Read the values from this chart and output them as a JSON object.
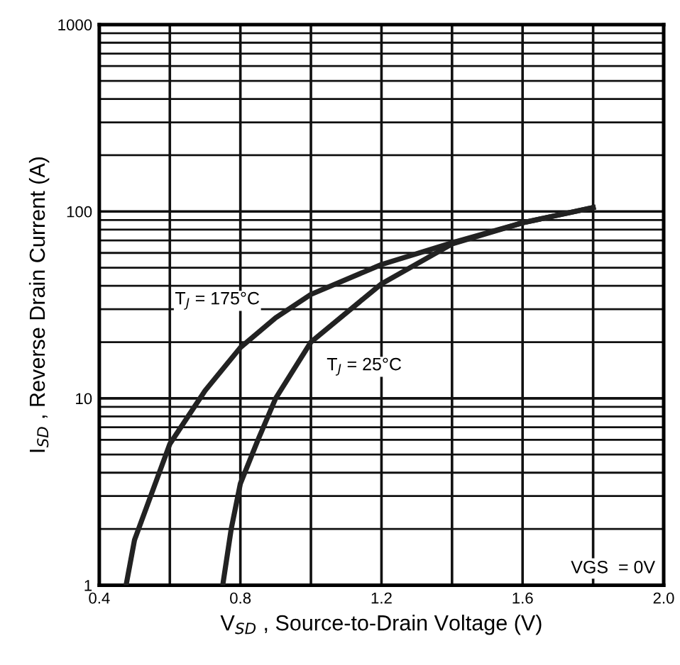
{
  "chart_data": {
    "type": "line",
    "log": "y",
    "xlabel": "V$_{SD}$ , Source-to-Drain Voltage (V)",
    "ylabel": "I$_{SD}$ , Reverse Drain Current (A)",
    "xlim": [
      0.4,
      2.0
    ],
    "ylim": [
      1,
      1000
    ],
    "xticks": [
      0.4,
      {
        "value": 0.6,
        "label": null
      },
      0.8,
      {
        "value": 1.0,
        "label": null
      },
      1.2,
      {
        "value": 1.4,
        "label": null
      },
      1.6,
      {
        "value": 1.8,
        "label": null
      },
      {
        "value": 2.0,
        "label": "2.0"
      }
    ],
    "yticks": [
      1,
      10,
      100,
      1000
    ],
    "grid": true,
    "legend": false,
    "marker": "none",
    "line_style": "solid",
    "series": [
      {
        "name": "T$_{J}$ = 175°C",
        "color": "#222222",
        "x": [
          0.476,
          0.5,
          0.6,
          0.7,
          0.8,
          0.9,
          1.0,
          1.2,
          1.4,
          1.6,
          1.8
        ],
        "values": [
          1,
          1.75,
          5.7,
          11,
          18.7,
          27,
          36,
          52,
          68,
          87,
          105
        ]
      },
      {
        "name": "T$_{J}$ = 25°C",
        "color": "#222222",
        "x": [
          0.75,
          0.774,
          0.8,
          0.85,
          0.9,
          1.0,
          1.2,
          1.4,
          1.6,
          1.8
        ],
        "values": [
          1,
          2,
          3.5,
          6,
          10,
          20,
          41,
          67,
          87,
          105
        ]
      }
    ],
    "annotations": [
      "VGS  = 0V"
    ]
  }
}
